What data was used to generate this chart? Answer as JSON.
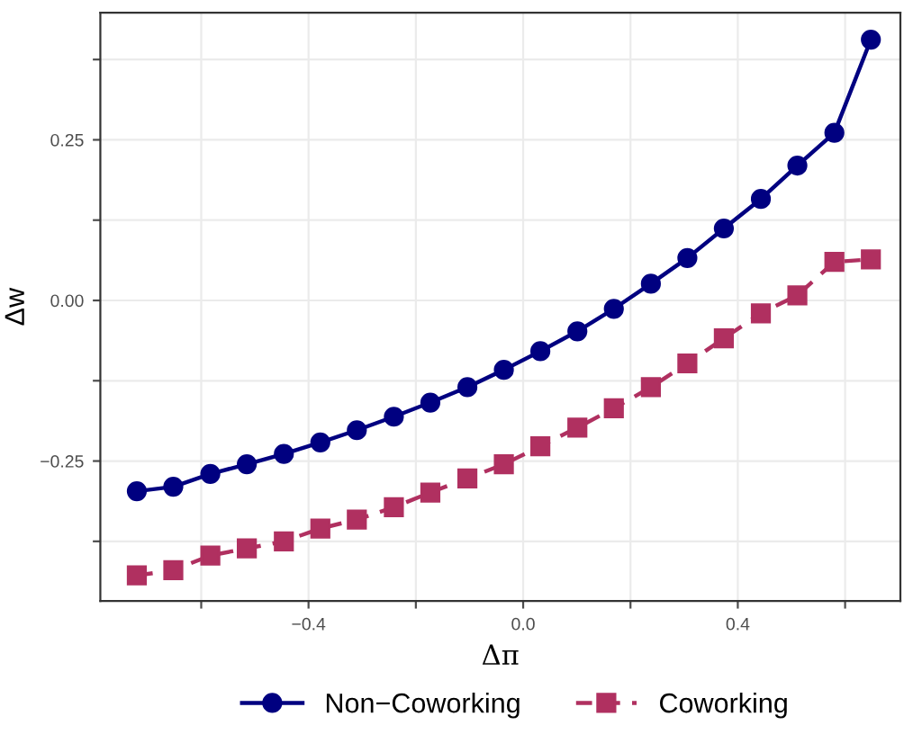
{
  "chart_data": {
    "type": "line",
    "xlabel": "Δπ",
    "ylabel": "Δw",
    "x": [
      -0.72,
      -0.652,
      -0.583,
      -0.515,
      -0.446,
      -0.378,
      -0.31,
      -0.241,
      -0.173,
      -0.104,
      -0.036,
      0.032,
      0.101,
      0.169,
      0.238,
      0.306,
      0.374,
      0.443,
      0.511,
      0.58,
      0.648
    ],
    "series": [
      {
        "name": "Non−Coworking",
        "color": "#000080",
        "marker": "circle",
        "line_style": "solid",
        "values": [
          -0.297,
          -0.29,
          -0.27,
          -0.255,
          -0.239,
          -0.221,
          -0.202,
          -0.181,
          -0.159,
          -0.135,
          -0.108,
          -0.079,
          -0.048,
          -0.013,
          0.026,
          0.066,
          0.112,
          0.158,
          0.21,
          0.261,
          0.406
        ]
      },
      {
        "name": "Coworking",
        "color": "#b03060",
        "marker": "square",
        "line_style": "dashed",
        "values": [
          -0.428,
          -0.42,
          -0.397,
          -0.386,
          -0.375,
          -0.355,
          -0.341,
          -0.322,
          -0.299,
          -0.277,
          -0.255,
          -0.227,
          -0.198,
          -0.168,
          -0.135,
          -0.098,
          -0.059,
          -0.02,
          0.008,
          0.06,
          0.064
        ]
      }
    ],
    "xlim": [
      -0.788,
      0.703
    ],
    "ylim": [
      -0.468,
      0.448
    ],
    "xticks": [
      {
        "value": -0.6,
        "label": null
      },
      {
        "value": -0.4,
        "label": "−0.4"
      },
      {
        "value": -0.2,
        "label": null
      },
      {
        "value": 0.0,
        "label": "0.0"
      },
      {
        "value": 0.2,
        "label": null
      },
      {
        "value": 0.4,
        "label": "0.4"
      },
      {
        "value": 0.6,
        "label": null
      }
    ],
    "yticks": [
      {
        "value": -0.375,
        "label": null
      },
      {
        "value": -0.25,
        "label": "−0.25"
      },
      {
        "value": -0.125,
        "label": null
      },
      {
        "value": 0.0,
        "label": "0.00"
      },
      {
        "value": 0.125,
        "label": null
      },
      {
        "value": 0.25,
        "label": "0.25"
      },
      {
        "value": 0.375,
        "label": null
      }
    ],
    "grid": true,
    "legend": "bottom"
  }
}
